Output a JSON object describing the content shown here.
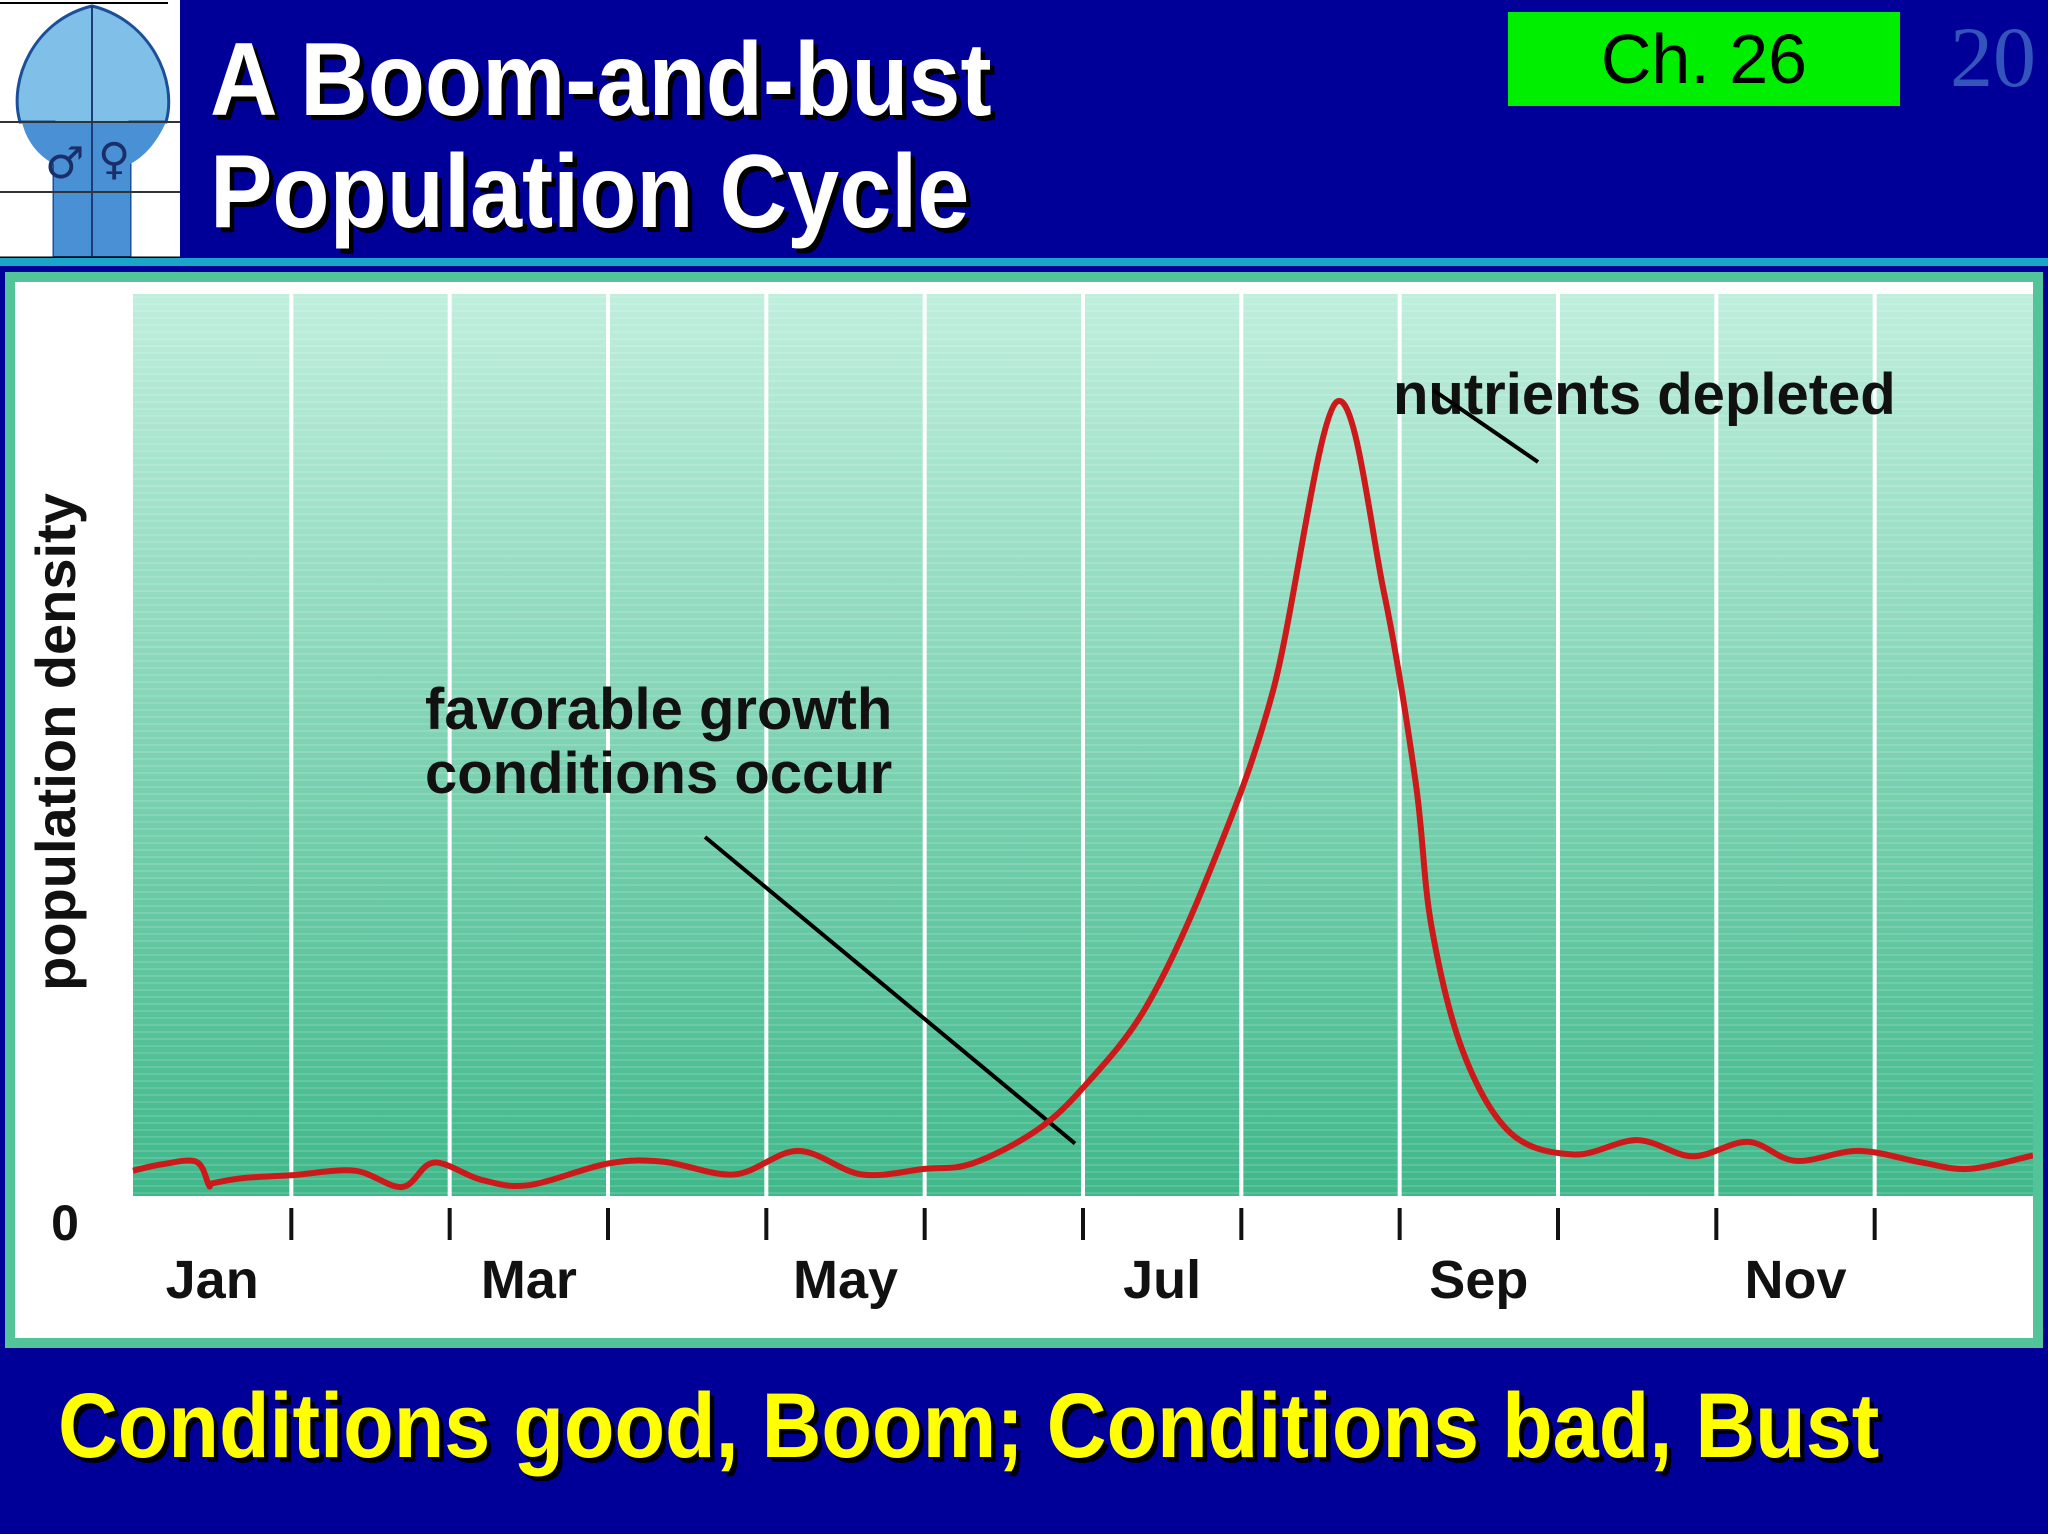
{
  "title_lines": [
    "A Boom-and-bust",
    "Population Cycle"
  ],
  "chapter_badge": "Ch. 26",
  "slide_number": "20",
  "caption": "Conditions good, Boom; Conditions bad, Bust",
  "colors": {
    "background": "#000099",
    "badge": "#00ee00",
    "plot_fill": "#4fc49a",
    "curve": "#cc1a1a",
    "caption": "#ffff00"
  },
  "logo": {
    "icon": "flask-male-female-icon",
    "male_symbol": "♂",
    "female_symbol": "♀"
  },
  "chart_data": {
    "type": "line",
    "title": "",
    "xlabel": "",
    "ylabel": "population density",
    "y_tick_labels": [
      "0"
    ],
    "x_tick_labels": [
      "Jan",
      "Mar",
      "May",
      "Jul",
      "Sep",
      "Nov"
    ],
    "xlim": [
      0,
      12
    ],
    "ylim": [
      0,
      100
    ],
    "grid": "vertical",
    "series": [
      {
        "name": "",
        "x": [
          0,
          0.18,
          0.4,
          0.48,
          0.5,
          0.7,
          1.0,
          1.4,
          1.7,
          1.9,
          2.2,
          2.5,
          3.0,
          3.35,
          3.8,
          4.2,
          4.6,
          5.0,
          5.3,
          5.7,
          6.0,
          6.4,
          6.8,
          7.2,
          7.6,
          7.9,
          8.1,
          8.2,
          8.4,
          8.7,
          9.1,
          9.5,
          9.85,
          10.2,
          10.5,
          10.9,
          11.3,
          11.6,
          12.0
        ],
        "y": [
          2.8,
          3.5,
          3.8,
          1.2,
          1.4,
          2.0,
          2.3,
          2.8,
          1.0,
          3.7,
          1.8,
          1.2,
          3.6,
          3.8,
          2.4,
          5.0,
          2.4,
          3.0,
          3.6,
          7.2,
          12.0,
          21.0,
          36.0,
          56.0,
          88.0,
          67.0,
          46.0,
          30.0,
          16.0,
          7.0,
          4.6,
          6.2,
          4.4,
          6.0,
          3.9,
          5.0,
          3.7,
          3.0,
          4.5
        ]
      }
    ],
    "annotations": [
      {
        "lines": [
          "favorable growth",
          "conditions occur"
        ],
        "point_x": 6.0,
        "point_y": 3.6
      },
      {
        "lines": [
          "nutrients depleted"
        ],
        "point_x": 8.1,
        "point_y": 88.0
      }
    ]
  }
}
